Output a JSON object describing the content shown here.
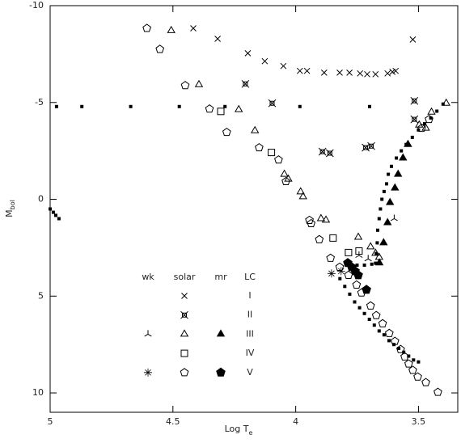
{
  "chart_data": {
    "type": "scatter",
    "xlabel_main": "Log T",
    "xlabel_sub": "e",
    "ylabel_main": "M",
    "ylabel_sub": "bol",
    "xlim": [
      5,
      3.34
    ],
    "xticks": [
      5,
      4.5,
      4,
      3.5
    ],
    "ylim": [
      -10,
      11
    ],
    "yticks": [
      -10,
      -5,
      0,
      5,
      10
    ],
    "y_inverted": true,
    "legend": {
      "columns": [
        "wk",
        "solar",
        "mr"
      ],
      "row_header": "LC",
      "rows": [
        "I",
        "II",
        "III",
        "IV",
        "V"
      ]
    },
    "series": [
      {
        "marker": "small-square",
        "color": "#000",
        "x": [
          4.974,
          4.871,
          4.672,
          4.474,
          4.288,
          3.983,
          3.699,
          5.0,
          4.987,
          4.977,
          4.964,
          3.82,
          3.8,
          3.78,
          3.76,
          3.74,
          3.72,
          3.7,
          3.68,
          3.66,
          3.64,
          3.62,
          3.6,
          3.58,
          3.56,
          3.54,
          3.52,
          3.5,
          3.79,
          3.75,
          3.72,
          3.69,
          3.675,
          3.672,
          3.668,
          3.666,
          3.66,
          3.655,
          3.649,
          3.64,
          3.63,
          3.623,
          3.61,
          3.59,
          3.57,
          3.55,
          3.525,
          3.5,
          3.475,
          3.45,
          3.425,
          3.4
        ],
        "values": [
          -4.79,
          -4.79,
          -4.79,
          -4.79,
          -4.79,
          -4.79,
          -4.79,
          0.5,
          0.67,
          0.83,
          1.0,
          4.1,
          4.5,
          4.9,
          5.3,
          5.6,
          5.9,
          6.2,
          6.5,
          6.8,
          7.0,
          7.3,
          7.5,
          7.7,
          7.9,
          8.1,
          8.3,
          8.4,
          3.3,
          3.4,
          3.4,
          3.35,
          3.3,
          2.8,
          2.25,
          1.6,
          1.0,
          0.5,
          0.0,
          -0.4,
          -0.8,
          -1.29,
          -1.7,
          -2.13,
          -2.5,
          -2.83,
          -3.2,
          -3.58,
          -3.9,
          -4.2,
          -4.55,
          -4.92
        ]
      },
      {
        "marker": "x",
        "color": "#000",
        "legend_column": "solar",
        "legend_row": "I",
        "x": [
          4.417,
          4.318,
          4.195,
          4.126,
          4.05,
          3.983,
          3.954,
          3.884,
          3.821,
          3.781,
          3.738,
          3.709,
          3.675,
          3.626,
          3.606,
          3.593,
          3.523
        ],
        "values": [
          -8.83,
          -8.29,
          -7.54,
          -7.13,
          -6.88,
          -6.63,
          -6.63,
          -6.54,
          -6.54,
          -6.54,
          -6.5,
          -6.46,
          -6.46,
          -6.5,
          -6.58,
          -6.63,
          -8.25
        ]
      },
      {
        "marker": "crossed-square",
        "color": "#000",
        "legend_column": "solar",
        "legend_row": "II",
        "x": [
          4.205,
          4.096,
          3.891,
          3.861,
          3.715,
          3.692,
          3.517,
          3.517
        ],
        "values": [
          -5.96,
          -4.96,
          -2.46,
          -2.38,
          -2.67,
          -2.75,
          -5.08,
          -4.13
        ]
      },
      {
        "marker": "triangle-open",
        "color": "#000",
        "legend_column": "solar",
        "legend_row": "III",
        "x": [
          4.507,
          4.394,
          4.232,
          4.166,
          4.046,
          4.03,
          3.98,
          3.97,
          3.897,
          3.877,
          3.745,
          3.695,
          3.675,
          3.66,
          3.497,
          3.47,
          3.447,
          3.387
        ],
        "values": [
          -8.71,
          -5.92,
          -4.63,
          -3.54,
          -1.29,
          -1.04,
          -0.38,
          -0.13,
          1.0,
          1.08,
          1.96,
          2.46,
          2.79,
          3.0,
          -3.83,
          -3.67,
          -4.5,
          -4.96
        ]
      },
      {
        "marker": "square-open",
        "color": "#000",
        "legend_column": "solar",
        "legend_row": "IV",
        "x": [
          4.305,
          4.099,
          3.848,
          3.785,
          3.742
        ],
        "values": [
          -4.54,
          -2.42,
          2.0,
          2.75,
          2.67
        ]
      },
      {
        "marker": "pentagon-open",
        "color": "#000",
        "legend_column": "solar",
        "legend_row": "V",
        "x": [
          4.606,
          4.553,
          4.45,
          4.351,
          4.281,
          4.149,
          4.07,
          4.04,
          3.944,
          3.937,
          3.904,
          3.858,
          3.821,
          3.785,
          3.752,
          3.732,
          3.695,
          3.672,
          3.646,
          3.619,
          3.596,
          3.573,
          3.556,
          3.54,
          3.523,
          3.503,
          3.47,
          3.421,
          3.487,
          3.457
        ],
        "values": [
          -8.83,
          -7.75,
          -5.88,
          -4.67,
          -3.46,
          -2.67,
          -2.04,
          -0.92,
          1.08,
          1.25,
          2.08,
          3.04,
          3.5,
          3.92,
          4.42,
          4.83,
          5.5,
          6.0,
          6.42,
          6.92,
          7.33,
          7.75,
          8.13,
          8.5,
          8.83,
          9.17,
          9.46,
          9.96,
          -3.67,
          -4.13
        ]
      },
      {
        "marker": "tri",
        "color": "#000",
        "legend_column": "wk",
        "legend_row": "III",
        "x": [
          3.599,
          3.705,
          3.742
        ],
        "values": [
          1.0,
          3.08,
          2.9
        ]
      },
      {
        "marker": "star",
        "color": "#000",
        "legend_column": "wk",
        "legend_row": "V",
        "x": [
          3.854,
          3.815
        ],
        "values": [
          3.83,
          3.71
        ]
      },
      {
        "marker": "triangle-filled",
        "color": "#000",
        "legend_column": "mr",
        "legend_row": "III",
        "x": [
          3.659,
          3.642,
          3.626,
          3.616,
          3.596,
          3.583,
          3.563,
          3.543
        ],
        "values": [
          3.29,
          2.25,
          1.21,
          0.17,
          -0.58,
          -1.29,
          -2.13,
          -2.83
        ]
      },
      {
        "marker": "pentagon-filled",
        "color": "#000",
        "legend_column": "mr",
        "legend_row": "V",
        "x": [
          3.788,
          3.772,
          3.758,
          3.745,
          3.712
        ],
        "values": [
          3.29,
          3.5,
          3.71,
          3.92,
          4.67
        ]
      }
    ]
  }
}
